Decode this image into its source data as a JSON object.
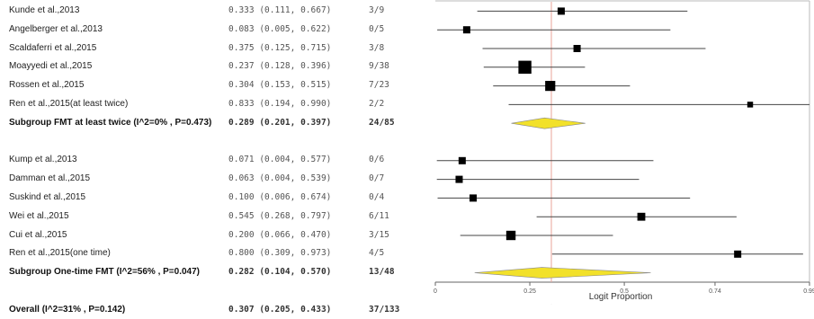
{
  "chart_data": {
    "type": "forest",
    "xlabel": "Logit Proportion",
    "xlim": [
      0,
      0.99
    ],
    "x_ticks": [
      0,
      0.25,
      0.5,
      0.74,
      0.99
    ],
    "x_tick_labels": [
      "0",
      "0.25",
      "0.5",
      "0.74",
      "0.99"
    ],
    "reference_line": 0.307,
    "rows": [
      {
        "label": "Kunde et al.,2013",
        "est": 0.333,
        "lo": 0.111,
        "hi": 0.667,
        "est_text": "0.333 (0.111, 0.667)",
        "ratio": "3/9",
        "kind": "study",
        "weight": 1.0
      },
      {
        "label": "Angelberger et al.,2013",
        "est": 0.083,
        "lo": 0.005,
        "hi": 0.622,
        "est_text": "0.083 (0.005, 0.622)",
        "ratio": "0/5",
        "kind": "study",
        "weight": 1.0
      },
      {
        "label": "Scaldaferri et al.,2015",
        "est": 0.375,
        "lo": 0.125,
        "hi": 0.715,
        "est_text": "0.375 (0.125, 0.715)",
        "ratio": "3/8",
        "kind": "study",
        "weight": 1.0
      },
      {
        "label": "Moayyedi et al.,2015",
        "est": 0.237,
        "lo": 0.128,
        "hi": 0.396,
        "est_text": "0.237 (0.128, 0.396)",
        "ratio": "9/38",
        "kind": "study",
        "weight": 1.8
      },
      {
        "label": "Rossen et al.,2015",
        "est": 0.304,
        "lo": 0.153,
        "hi": 0.515,
        "est_text": "0.304 (0.153, 0.515)",
        "ratio": "7/23",
        "kind": "study",
        "weight": 1.4
      },
      {
        "label": "Ren et al.,2015(at least twice)",
        "est": 0.833,
        "lo": 0.194,
        "hi": 0.99,
        "est_text": "0.833 (0.194, 0.990)",
        "ratio": "2/2",
        "kind": "study",
        "weight": 0.8
      },
      {
        "label": "Subgroup FMT at least twice (I^2=0% , P=0.473)",
        "est": 0.289,
        "lo": 0.201,
        "hi": 0.397,
        "est_text": "0.289 (0.201, 0.397)",
        "ratio": "24/85",
        "kind": "subgroup"
      },
      {
        "label": "",
        "kind": "blank"
      },
      {
        "label": "Kump et al.,2013",
        "est": 0.071,
        "lo": 0.004,
        "hi": 0.577,
        "est_text": "0.071 (0.004, 0.577)",
        "ratio": "0/6",
        "kind": "study",
        "weight": 1.0
      },
      {
        "label": "Damman et al.,2015",
        "est": 0.063,
        "lo": 0.004,
        "hi": 0.539,
        "est_text": "0.063 (0.004, 0.539)",
        "ratio": "0/7",
        "kind": "study",
        "weight": 1.0
      },
      {
        "label": "Suskind et al.,2015",
        "est": 0.1,
        "lo": 0.006,
        "hi": 0.674,
        "est_text": "0.100 (0.006, 0.674)",
        "ratio": "0/4",
        "kind": "study",
        "weight": 1.0
      },
      {
        "label": "Wei et al.,2015",
        "est": 0.545,
        "lo": 0.268,
        "hi": 0.797,
        "est_text": "0.545 (0.268, 0.797)",
        "ratio": "6/11",
        "kind": "study",
        "weight": 1.1
      },
      {
        "label": "Cui et al.,2015",
        "est": 0.2,
        "lo": 0.066,
        "hi": 0.47,
        "est_text": "0.200 (0.066, 0.470)",
        "ratio": "3/15",
        "kind": "study",
        "weight": 1.3
      },
      {
        "label": "Ren et al.,2015(one time)",
        "est": 0.8,
        "lo": 0.309,
        "hi": 0.973,
        "est_text": "0.800 (0.309, 0.973)",
        "ratio": "4/5",
        "kind": "study",
        "weight": 1.0
      },
      {
        "label": "Subgroup One-time FMT (I^2=56% , P=0.047)",
        "est": 0.282,
        "lo": 0.104,
        "hi": 0.57,
        "est_text": "0.282 (0.104, 0.570)",
        "ratio": "13/48",
        "kind": "subgroup"
      },
      {
        "label": "",
        "kind": "blank"
      },
      {
        "label": "Overall (I^2=31% , P=0.142)",
        "est": 0.307,
        "lo": 0.205,
        "hi": 0.433,
        "est_text": "0.307 (0.205, 0.433)",
        "ratio": "37/133",
        "kind": "overall"
      }
    ],
    "colors": {
      "subgroup_diamond": "#f2e12a",
      "overall_diamond": "#9fd3e8",
      "reference_line": "#e8a39a",
      "marker": "#000000"
    }
  }
}
